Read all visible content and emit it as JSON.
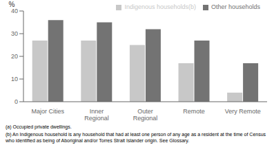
{
  "chart_data": {
    "type": "bar",
    "categories": [
      "Major Cities",
      "Inner\nRegional",
      "Outer\nRegional",
      "Remote",
      "Very Remote"
    ],
    "series": [
      {
        "name": "Indigenous households(b)",
        "color": "#c8c8c8",
        "values": [
          27,
          27,
          25,
          17,
          4
        ]
      },
      {
        "name": "Other households",
        "color": "#737373",
        "values": [
          36,
          35,
          32,
          27,
          17
        ]
      }
    ],
    "y_label": "%",
    "ylim": [
      0,
      40
    ],
    "yticks": [
      0,
      10,
      20,
      30,
      40
    ],
    "grid": false,
    "legend": "upper right",
    "annotations": [
      "(a) Occupied private dwellings.",
      "(b) An Indigenous household is any household that had at least one person of any age as a resident at the time of Census who identified as being of Aboriginal and/or Torres Strait Islander origin. See Glossary."
    ]
  }
}
